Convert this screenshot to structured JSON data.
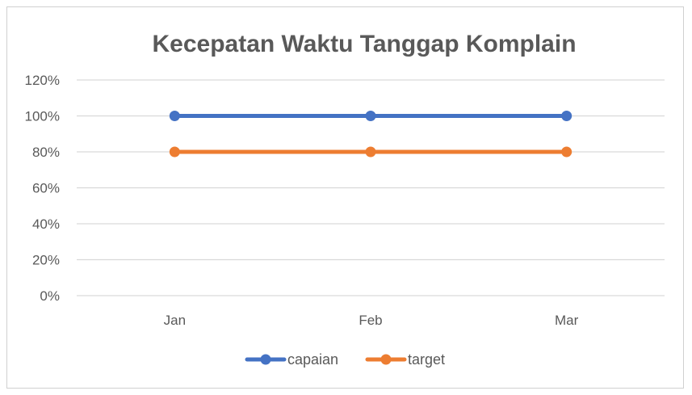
{
  "chart_data": {
    "type": "line",
    "title": "Kecepatan Waktu Tanggap Komplain",
    "xlabel": "",
    "ylabel": "",
    "categories": [
      "Jan",
      "Feb",
      "Mar"
    ],
    "y_ticks": [
      "0%",
      "20%",
      "40%",
      "60%",
      "80%",
      "100%",
      "120%"
    ],
    "ylim": [
      0,
      120
    ],
    "y_unit": "%",
    "grid": true,
    "legend_position": "bottom",
    "series": [
      {
        "name": "capaian",
        "values": [
          100,
          100,
          100
        ],
        "color": "#4472C4"
      },
      {
        "name": "target",
        "values": [
          80,
          80,
          80
        ],
        "color": "#ED7D31"
      }
    ]
  }
}
